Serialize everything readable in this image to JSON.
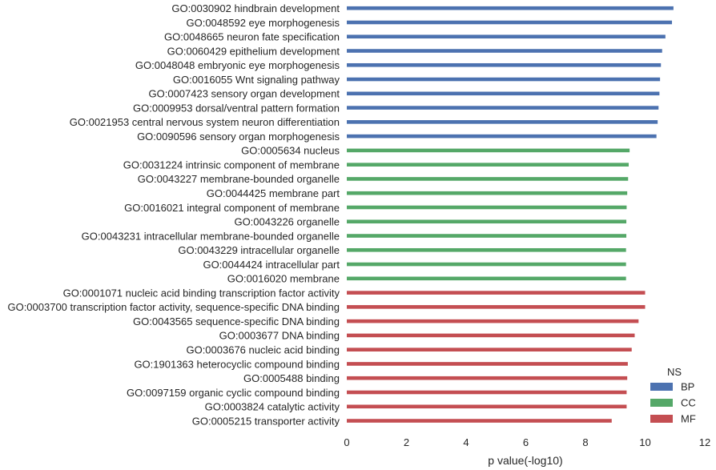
{
  "chart_data": {
    "type": "bar",
    "orientation": "horizontal",
    "xlabel": "p value(-log10)",
    "ylabel": "",
    "title": "",
    "xlim": [
      0,
      12
    ],
    "xticks": [
      0,
      2,
      4,
      6,
      8,
      10,
      12
    ],
    "grid": false,
    "legend": {
      "title": "NS",
      "placement": "bottom-right",
      "entries": [
        {
          "name": "BP",
          "color": "#4c72b0"
        },
        {
          "name": "CC",
          "color": "#55a868"
        },
        {
          "name": "MF",
          "color": "#c44e52"
        }
      ]
    },
    "categories": [
      "GO:0030902 hindbrain development",
      "GO:0048592 eye morphogenesis",
      "GO:0048665 neuron fate specification",
      "GO:0060429 epithelium development",
      "GO:0048048 embryonic eye morphogenesis",
      "GO:0016055 Wnt signaling pathway",
      "GO:0007423 sensory organ development",
      "GO:0009953 dorsal/ventral pattern formation",
      "GO:0021953 central nervous system neuron differentiation",
      "GO:0090596 sensory organ morphogenesis",
      "GO:0005634 nucleus",
      "GO:0031224 intrinsic component of membrane",
      "GO:0043227 membrane-bounded organelle",
      "GO:0044425 membrane part",
      "GO:0016021 integral component of membrane",
      "GO:0043226 organelle",
      "GO:0043231 intracellular membrane-bounded organelle",
      "GO:0043229 intracellular organelle",
      "GO:0044424 intracellular part",
      "GO:0016020 membrane",
      "GO:0001071 nucleic acid binding transcription factor activity",
      "GO:0003700 transcription factor activity, sequence-specific DNA binding",
      "GO:0043565 sequence-specific DNA binding",
      "GO:0003677 DNA binding",
      "GO:0003676 nucleic acid binding",
      "GO:1901363 heterocyclic compound binding",
      "GO:0005488 binding",
      "GO:0097159 organic cyclic compound binding",
      "GO:0003824 catalytic activity",
      "GO:0005215 transporter activity"
    ],
    "series": [
      {
        "name": "BP",
        "values": [
          10.95,
          10.9,
          10.68,
          10.57,
          10.53,
          10.5,
          10.48,
          10.45,
          10.42,
          10.38,
          0,
          0,
          0,
          0,
          0,
          0,
          0,
          0,
          0,
          0,
          0,
          0,
          0,
          0,
          0,
          0,
          0,
          0,
          0,
          0
        ]
      },
      {
        "name": "CC",
        "values": [
          0,
          0,
          0,
          0,
          0,
          0,
          0,
          0,
          0,
          0,
          9.48,
          9.45,
          9.43,
          9.4,
          9.38,
          9.37,
          9.37,
          9.36,
          9.36,
          9.36,
          0,
          0,
          0,
          0,
          0,
          0,
          0,
          0,
          0,
          0
        ]
      },
      {
        "name": "MF",
        "values": [
          0,
          0,
          0,
          0,
          0,
          0,
          0,
          0,
          0,
          0,
          0,
          0,
          0,
          0,
          0,
          0,
          0,
          0,
          0,
          0,
          10.0,
          10.0,
          9.78,
          9.65,
          9.55,
          9.42,
          9.4,
          9.38,
          9.38,
          8.88
        ]
      }
    ]
  }
}
